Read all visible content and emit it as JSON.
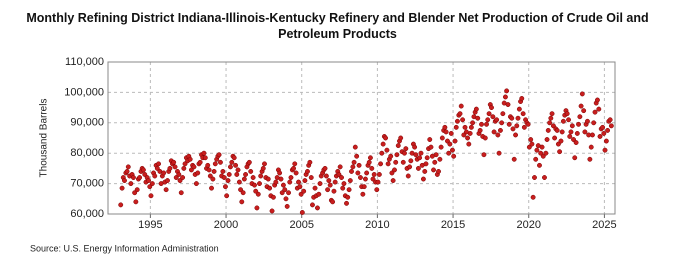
{
  "chart_data": {
    "type": "scatter",
    "title": "Monthly Refining District Indiana-Illinois-Kentucky Refinery and Blender Net Production of Crude Oil and Petroleum Products",
    "y_label": "Thousand Barrels",
    "source": "Source: U.S. Energy Information Administration",
    "color": "#c81e1e",
    "grid": true,
    "xlim": [
      1992.2,
      2025.7
    ],
    "xticks": [
      1995,
      2000,
      2005,
      2010,
      2015,
      2020,
      2025
    ],
    "ylim": [
      60000,
      110000
    ],
    "yticks": [
      {
        "value": 60000,
        "label": "60,000"
      },
      {
        "value": 70000,
        "label": "70,000"
      },
      {
        "value": 80000,
        "label": "80,000"
      },
      {
        "value": 90000,
        "label": "90,000"
      },
      {
        "value": 100000,
        "label": "100,000"
      },
      {
        "value": 110000,
        "label": "110,000"
      }
    ],
    "x": [
      1993.04,
      1993.13,
      1993.21,
      1993.29,
      1993.38,
      1993.46,
      1993.54,
      1993.63,
      1993.71,
      1993.79,
      1993.88,
      1993.96,
      1994.04,
      1994.13,
      1994.21,
      1994.29,
      1994.38,
      1994.46,
      1994.54,
      1994.63,
      1994.71,
      1994.79,
      1994.88,
      1994.96,
      1995.04,
      1995.13,
      1995.21,
      1995.29,
      1995.38,
      1995.46,
      1995.54,
      1995.63,
      1995.71,
      1995.79,
      1995.88,
      1995.96,
      1996.04,
      1996.13,
      1996.21,
      1996.29,
      1996.38,
      1996.46,
      1996.54,
      1996.63,
      1996.71,
      1996.79,
      1996.88,
      1996.96,
      1997.04,
      1997.13,
      1997.21,
      1997.29,
      1997.38,
      1997.46,
      1997.54,
      1997.63,
      1997.71,
      1997.79,
      1997.88,
      1997.96,
      1998.04,
      1998.13,
      1998.21,
      1998.29,
      1998.38,
      1998.46,
      1998.54,
      1998.63,
      1998.71,
      1998.79,
      1998.88,
      1998.96,
      1999.04,
      1999.13,
      1999.21,
      1999.29,
      1999.38,
      1999.46,
      1999.54,
      1999.63,
      1999.71,
      1999.79,
      1999.88,
      1999.96,
      2000.04,
      2000.13,
      2000.21,
      2000.29,
      2000.38,
      2000.46,
      2000.54,
      2000.63,
      2000.71,
      2000.79,
      2000.88,
      2000.96,
      2001.04,
      2001.13,
      2001.21,
      2001.29,
      2001.38,
      2001.46,
      2001.54,
      2001.63,
      2001.71,
      2001.79,
      2001.88,
      2001.96,
      2002.04,
      2002.13,
      2002.21,
      2002.29,
      2002.38,
      2002.46,
      2002.54,
      2002.63,
      2002.71,
      2002.79,
      2002.88,
      2002.96,
      2003.04,
      2003.13,
      2003.21,
      2003.29,
      2003.38,
      2003.46,
      2003.54,
      2003.63,
      2003.71,
      2003.79,
      2003.88,
      2003.96,
      2004.04,
      2004.13,
      2004.21,
      2004.29,
      2004.38,
      2004.46,
      2004.54,
      2004.63,
      2004.71,
      2004.79,
      2004.88,
      2004.96,
      2005.04,
      2005.13,
      2005.21,
      2005.29,
      2005.38,
      2005.46,
      2005.54,
      2005.63,
      2005.71,
      2005.79,
      2005.88,
      2005.96,
      2006.04,
      2006.13,
      2006.21,
      2006.29,
      2006.38,
      2006.46,
      2006.54,
      2006.63,
      2006.71,
      2006.79,
      2006.88,
      2006.96,
      2007.04,
      2007.13,
      2007.21,
      2007.29,
      2007.38,
      2007.46,
      2007.54,
      2007.63,
      2007.71,
      2007.79,
      2007.88,
      2007.96,
      2008.04,
      2008.13,
      2008.21,
      2008.29,
      2008.38,
      2008.46,
      2008.54,
      2008.63,
      2008.71,
      2008.79,
      2008.88,
      2008.96,
      2009.04,
      2009.13,
      2009.21,
      2009.29,
      2009.38,
      2009.46,
      2009.54,
      2009.63,
      2009.71,
      2009.79,
      2009.88,
      2009.96,
      2010.04,
      2010.13,
      2010.21,
      2010.29,
      2010.38,
      2010.46,
      2010.54,
      2010.63,
      2010.71,
      2010.79,
      2010.88,
      2010.96,
      2011.04,
      2011.13,
      2011.21,
      2011.29,
      2011.38,
      2011.46,
      2011.54,
      2011.63,
      2011.71,
      2011.79,
      2011.88,
      2011.96,
      2012.04,
      2012.13,
      2012.21,
      2012.29,
      2012.38,
      2012.46,
      2012.54,
      2012.63,
      2012.71,
      2012.79,
      2012.88,
      2012.96,
      2013.04,
      2013.13,
      2013.21,
      2013.29,
      2013.38,
      2013.46,
      2013.54,
      2013.63,
      2013.71,
      2013.79,
      2013.88,
      2013.96,
      2014.04,
      2014.13,
      2014.21,
      2014.29,
      2014.38,
      2014.46,
      2014.54,
      2014.63,
      2014.71,
      2014.79,
      2014.88,
      2014.96,
      2015.04,
      2015.13,
      2015.21,
      2015.29,
      2015.38,
      2015.46,
      2015.54,
      2015.63,
      2015.71,
      2015.79,
      2015.88,
      2015.96,
      2016.04,
      2016.13,
      2016.21,
      2016.29,
      2016.38,
      2016.46,
      2016.54,
      2016.63,
      2016.71,
      2016.79,
      2016.88,
      2016.96,
      2017.04,
      2017.13,
      2017.21,
      2017.29,
      2017.38,
      2017.46,
      2017.54,
      2017.63,
      2017.71,
      2017.79,
      2017.88,
      2017.96,
      2018.04,
      2018.13,
      2018.21,
      2018.29,
      2018.38,
      2018.46,
      2018.54,
      2018.63,
      2018.71,
      2018.79,
      2018.88,
      2018.96,
      2019.04,
      2019.13,
      2019.21,
      2019.29,
      2019.38,
      2019.46,
      2019.54,
      2019.63,
      2019.71,
      2019.79,
      2019.88,
      2019.96,
      2020.04,
      2020.13,
      2020.21,
      2020.29,
      2020.38,
      2020.46,
      2020.54,
      2020.63,
      2020.71,
      2020.79,
      2020.88,
      2020.96,
      2021.04,
      2021.13,
      2021.21,
      2021.29,
      2021.38,
      2021.46,
      2021.54,
      2021.63,
      2021.71,
      2021.79,
      2021.88,
      2021.96,
      2022.04,
      2022.13,
      2022.21,
      2022.29,
      2022.38,
      2022.46,
      2022.54,
      2022.63,
      2022.71,
      2022.79,
      2022.88,
      2022.96,
      2023.04,
      2023.13,
      2023.21,
      2023.29,
      2023.38,
      2023.46,
      2023.54,
      2023.63,
      2023.71,
      2023.79,
      2023.88,
      2023.96,
      2024.04,
      2024.13,
      2024.21,
      2024.29,
      2024.38,
      2024.46,
      2024.54,
      2024.63,
      2024.71,
      2024.79,
      2024.88,
      2024.96,
      2025.04,
      2025.13,
      2025.21,
      2025.29,
      2025.38,
      2025.46
    ],
    "values": [
      63000,
      68500,
      72000,
      71000,
      73500,
      74000,
      75500,
      72500,
      70000,
      73000,
      72000,
      67000,
      64000,
      68000,
      71500,
      72000,
      74000,
      75000,
      74500,
      73000,
      70500,
      72000,
      71000,
      69000,
      66000,
      70000,
      73500,
      72500,
      76000,
      75000,
      76500,
      74000,
      70000,
      72500,
      73500,
      70500,
      68000,
      71000,
      74000,
      75000,
      77500,
      76500,
      77000,
      75500,
      72000,
      74000,
      73000,
      71000,
      67000,
      72000,
      75000,
      76500,
      78500,
      77500,
      79000,
      78000,
      74500,
      76000,
      75500,
      73000,
      70000,
      73500,
      76500,
      77000,
      79500,
      78500,
      80000,
      78500,
      75000,
      76000,
      74500,
      72500,
      68500,
      71500,
      74000,
      76500,
      78000,
      79000,
      79500,
      77000,
      72500,
      74000,
      72000,
      69000,
      66000,
      71000,
      73000,
      75500,
      77000,
      79000,
      78500,
      76000,
      73000,
      74500,
      70500,
      68000,
      64000,
      67000,
      71500,
      73000,
      75500,
      76500,
      77000,
      74000,
      70000,
      72000,
      69500,
      67500,
      62000,
      66500,
      70000,
      72500,
      74000,
      75000,
      76500,
      72000,
      69000,
      71500,
      68500,
      66000,
      61000,
      65500,
      69500,
      70500,
      72000,
      74500,
      73500,
      71500,
      67000,
      69500,
      68000,
      65000,
      62500,
      67000,
      70500,
      72000,
      74500,
      75000,
      76500,
      73500,
      68500,
      70500,
      69000,
      66500,
      60500,
      67500,
      71000,
      73000,
      74000,
      76000,
      77000,
      72000,
      63000,
      65500,
      68500,
      66000,
      62000,
      66500,
      70000,
      72500,
      73500,
      74500,
      75000,
      72500,
      68000,
      71000,
      69500,
      64500,
      64000,
      67500,
      70500,
      72500,
      74000,
      73000,
      75500,
      72000,
      68500,
      70000,
      66000,
      63500,
      65500,
      68000,
      71000,
      74000,
      75500,
      77000,
      82000,
      79000,
      73500,
      76000,
      72000,
      69000,
      66500,
      69000,
      71500,
      73500,
      76000,
      77000,
      78500,
      75000,
      71500,
      73000,
      70500,
      68000,
      70500,
      73000,
      76500,
      80000,
      83000,
      85500,
      85000,
      81000,
      76500,
      78000,
      79000,
      73500,
      71000,
      74500,
      77000,
      79500,
      82500,
      84000,
      85000,
      80500,
      77000,
      80000,
      81500,
      75000,
      72500,
      75500,
      77500,
      80000,
      83000,
      82000,
      79500,
      78000,
      75000,
      78500,
      80000,
      76000,
      71500,
      74000,
      76500,
      78500,
      81500,
      84500,
      82000,
      79000,
      74500,
      77000,
      79500,
      73000,
      74000,
      78000,
      82000,
      85000,
      87500,
      88500,
      87000,
      84000,
      80000,
      83000,
      86500,
      81000,
      79000,
      84000,
      88500,
      90500,
      92500,
      93000,
      95500,
      91000,
      86000,
      88500,
      87000,
      85000,
      83000,
      86500,
      88500,
      90000,
      92000,
      93500,
      94500,
      91500,
      86500,
      87500,
      89500,
      85500,
      79500,
      85000,
      89500,
      91000,
      93000,
      96000,
      95000,
      92000,
      87000,
      90500,
      91000,
      86000,
      80000,
      87500,
      90000,
      93000,
      96500,
      98500,
      100500,
      96000,
      89500,
      92000,
      91500,
      88000,
      78000,
      86000,
      89000,
      91500,
      94500,
      97000,
      98000,
      93000,
      88500,
      91000,
      90000,
      89500,
      82000,
      84500,
      83000,
      65500,
      72000,
      78000,
      81000,
      82500,
      76000,
      80000,
      82000,
      79000,
      72000,
      80000,
      84500,
      87500,
      90000,
      91500,
      93000,
      89000,
      85000,
      88000,
      87500,
      83000,
      80500,
      84000,
      87000,
      90500,
      92500,
      94000,
      93000,
      91000,
      85500,
      87000,
      89000,
      84500,
      78500,
      83500,
      86500,
      89500,
      92000,
      95500,
      99500,
      94000,
      87000,
      89500,
      90500,
      86000,
      78000,
      82000,
      86000,
      90000,
      93500,
      96500,
      97500,
      94500,
      85500,
      88000,
      88500,
      86500,
      81000,
      84000,
      87500,
      90500,
      91000,
      89000
    ]
  }
}
